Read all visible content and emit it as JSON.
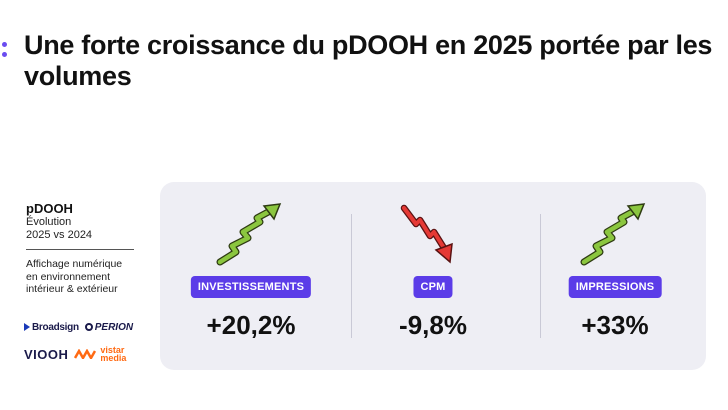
{
  "title": "Une forte croissance du pDOOH en 2025 portée par les volumes",
  "sidebar": {
    "title": "pDOOH",
    "subtitle_line1": "Évolution",
    "subtitle_line2": "2025 vs 2024",
    "description_line1": "Affichage numérique",
    "description_line2": "en environnement",
    "description_line3": "intérieur & extérieur"
  },
  "logos": {
    "broadsign": "Broadsign",
    "perion": "PERION",
    "viooh": "VIOOH",
    "vistar_line1": "vistar",
    "vistar_line2": "media"
  },
  "metrics": [
    {
      "label": "INVESTISSEMENTS",
      "value": "+20,2%",
      "trend": "up",
      "icon": "zigzag-up-arrow-icon",
      "color": "#7ac143"
    },
    {
      "label": "CPM",
      "value": "-9,8%",
      "trend": "down",
      "icon": "zigzag-down-arrow-icon",
      "color": "#e53935"
    },
    {
      "label": "IMPRESSIONS",
      "value": "+33%",
      "trend": "up",
      "icon": "zigzag-up-arrow-icon",
      "color": "#7ac143"
    }
  ],
  "colors": {
    "accent": "#5b3ce8",
    "panel": "#eeeef4",
    "up": "#7ac143",
    "down": "#e53935"
  }
}
